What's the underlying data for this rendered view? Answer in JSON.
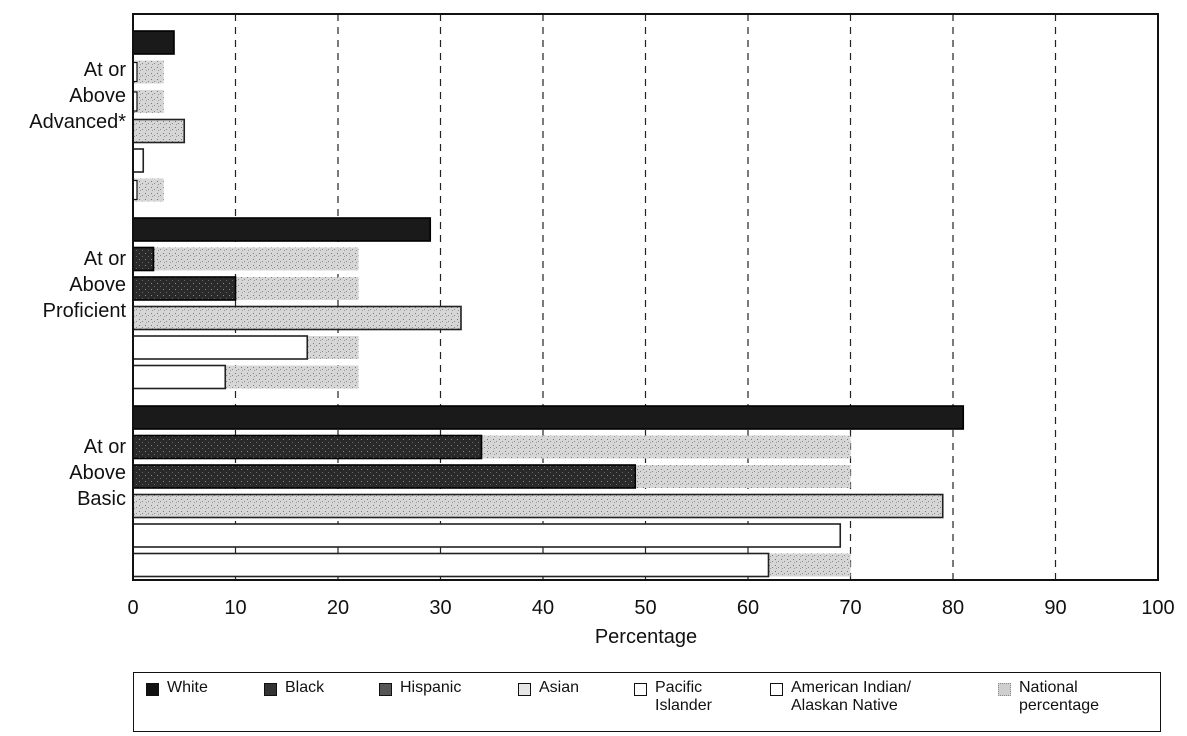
{
  "chart_data": {
    "type": "bar",
    "orientation": "horizontal",
    "categories": [
      "At or\nAbove\nAdvanced*",
      "At or\nAbove\nProficient",
      "At or\nAbove\nBasic"
    ],
    "series": [
      {
        "name": "White",
        "values": [
          4,
          29,
          81
        ],
        "national": [
          4,
          29,
          81
        ]
      },
      {
        "name": "Black",
        "values": [
          0,
          2,
          34
        ],
        "national": [
          3,
          22,
          70
        ]
      },
      {
        "name": "Hispanic",
        "values": [
          0,
          10,
          49
        ],
        "national": [
          3,
          22,
          70
        ]
      },
      {
        "name": "Asian",
        "values": [
          5,
          32,
          79
        ],
        "national": [
          5,
          32,
          79
        ]
      },
      {
        "name": "Pacific\nIslander",
        "values": [
          1,
          17,
          69
        ],
        "national": [
          1,
          22,
          69
        ]
      },
      {
        "name": "American Indian/\nAlaskan Native",
        "values": [
          0,
          9,
          62
        ],
        "national": [
          3,
          22,
          70
        ]
      }
    ],
    "legend_extra": "National\npercentage",
    "xlabel": "Percentage",
    "xlim": [
      0,
      100
    ],
    "xticks": [
      0,
      10,
      20,
      30,
      40,
      50,
      60,
      70,
      80,
      90,
      100
    ],
    "grid": "vertical dashed",
    "legend_position": "bottom",
    "colors": {
      "White": "#1a1a1a",
      "Black": "#2e2e2e",
      "Hispanic": "#4a4a4a",
      "Asian": "#e0e0e0",
      "Pacific\nIslander": "#ffffff",
      "American Indian/\nAlaskan Native": "#ffffff",
      "National": "#cfcfcf"
    }
  }
}
